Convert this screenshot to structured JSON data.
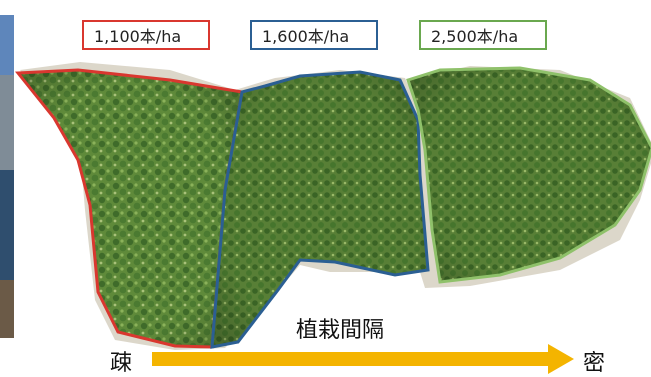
{
  "labels": {
    "low": {
      "text": "1,100本/ha",
      "color": "#d9372f"
    },
    "mid": {
      "text": "1,600本/ha",
      "color": "#2b5f93"
    },
    "high": {
      "text": "2,500本/ha",
      "color": "#6aa84f"
    }
  },
  "axis": {
    "title": "植栽間隔",
    "sparse": "疎",
    "dense": "密",
    "arrow_color": "#f4b400"
  },
  "colors": {
    "vegetation_dark": "#3f6b2a",
    "vegetation_light": "#7aa04a",
    "ground": "#d8d3c4"
  }
}
